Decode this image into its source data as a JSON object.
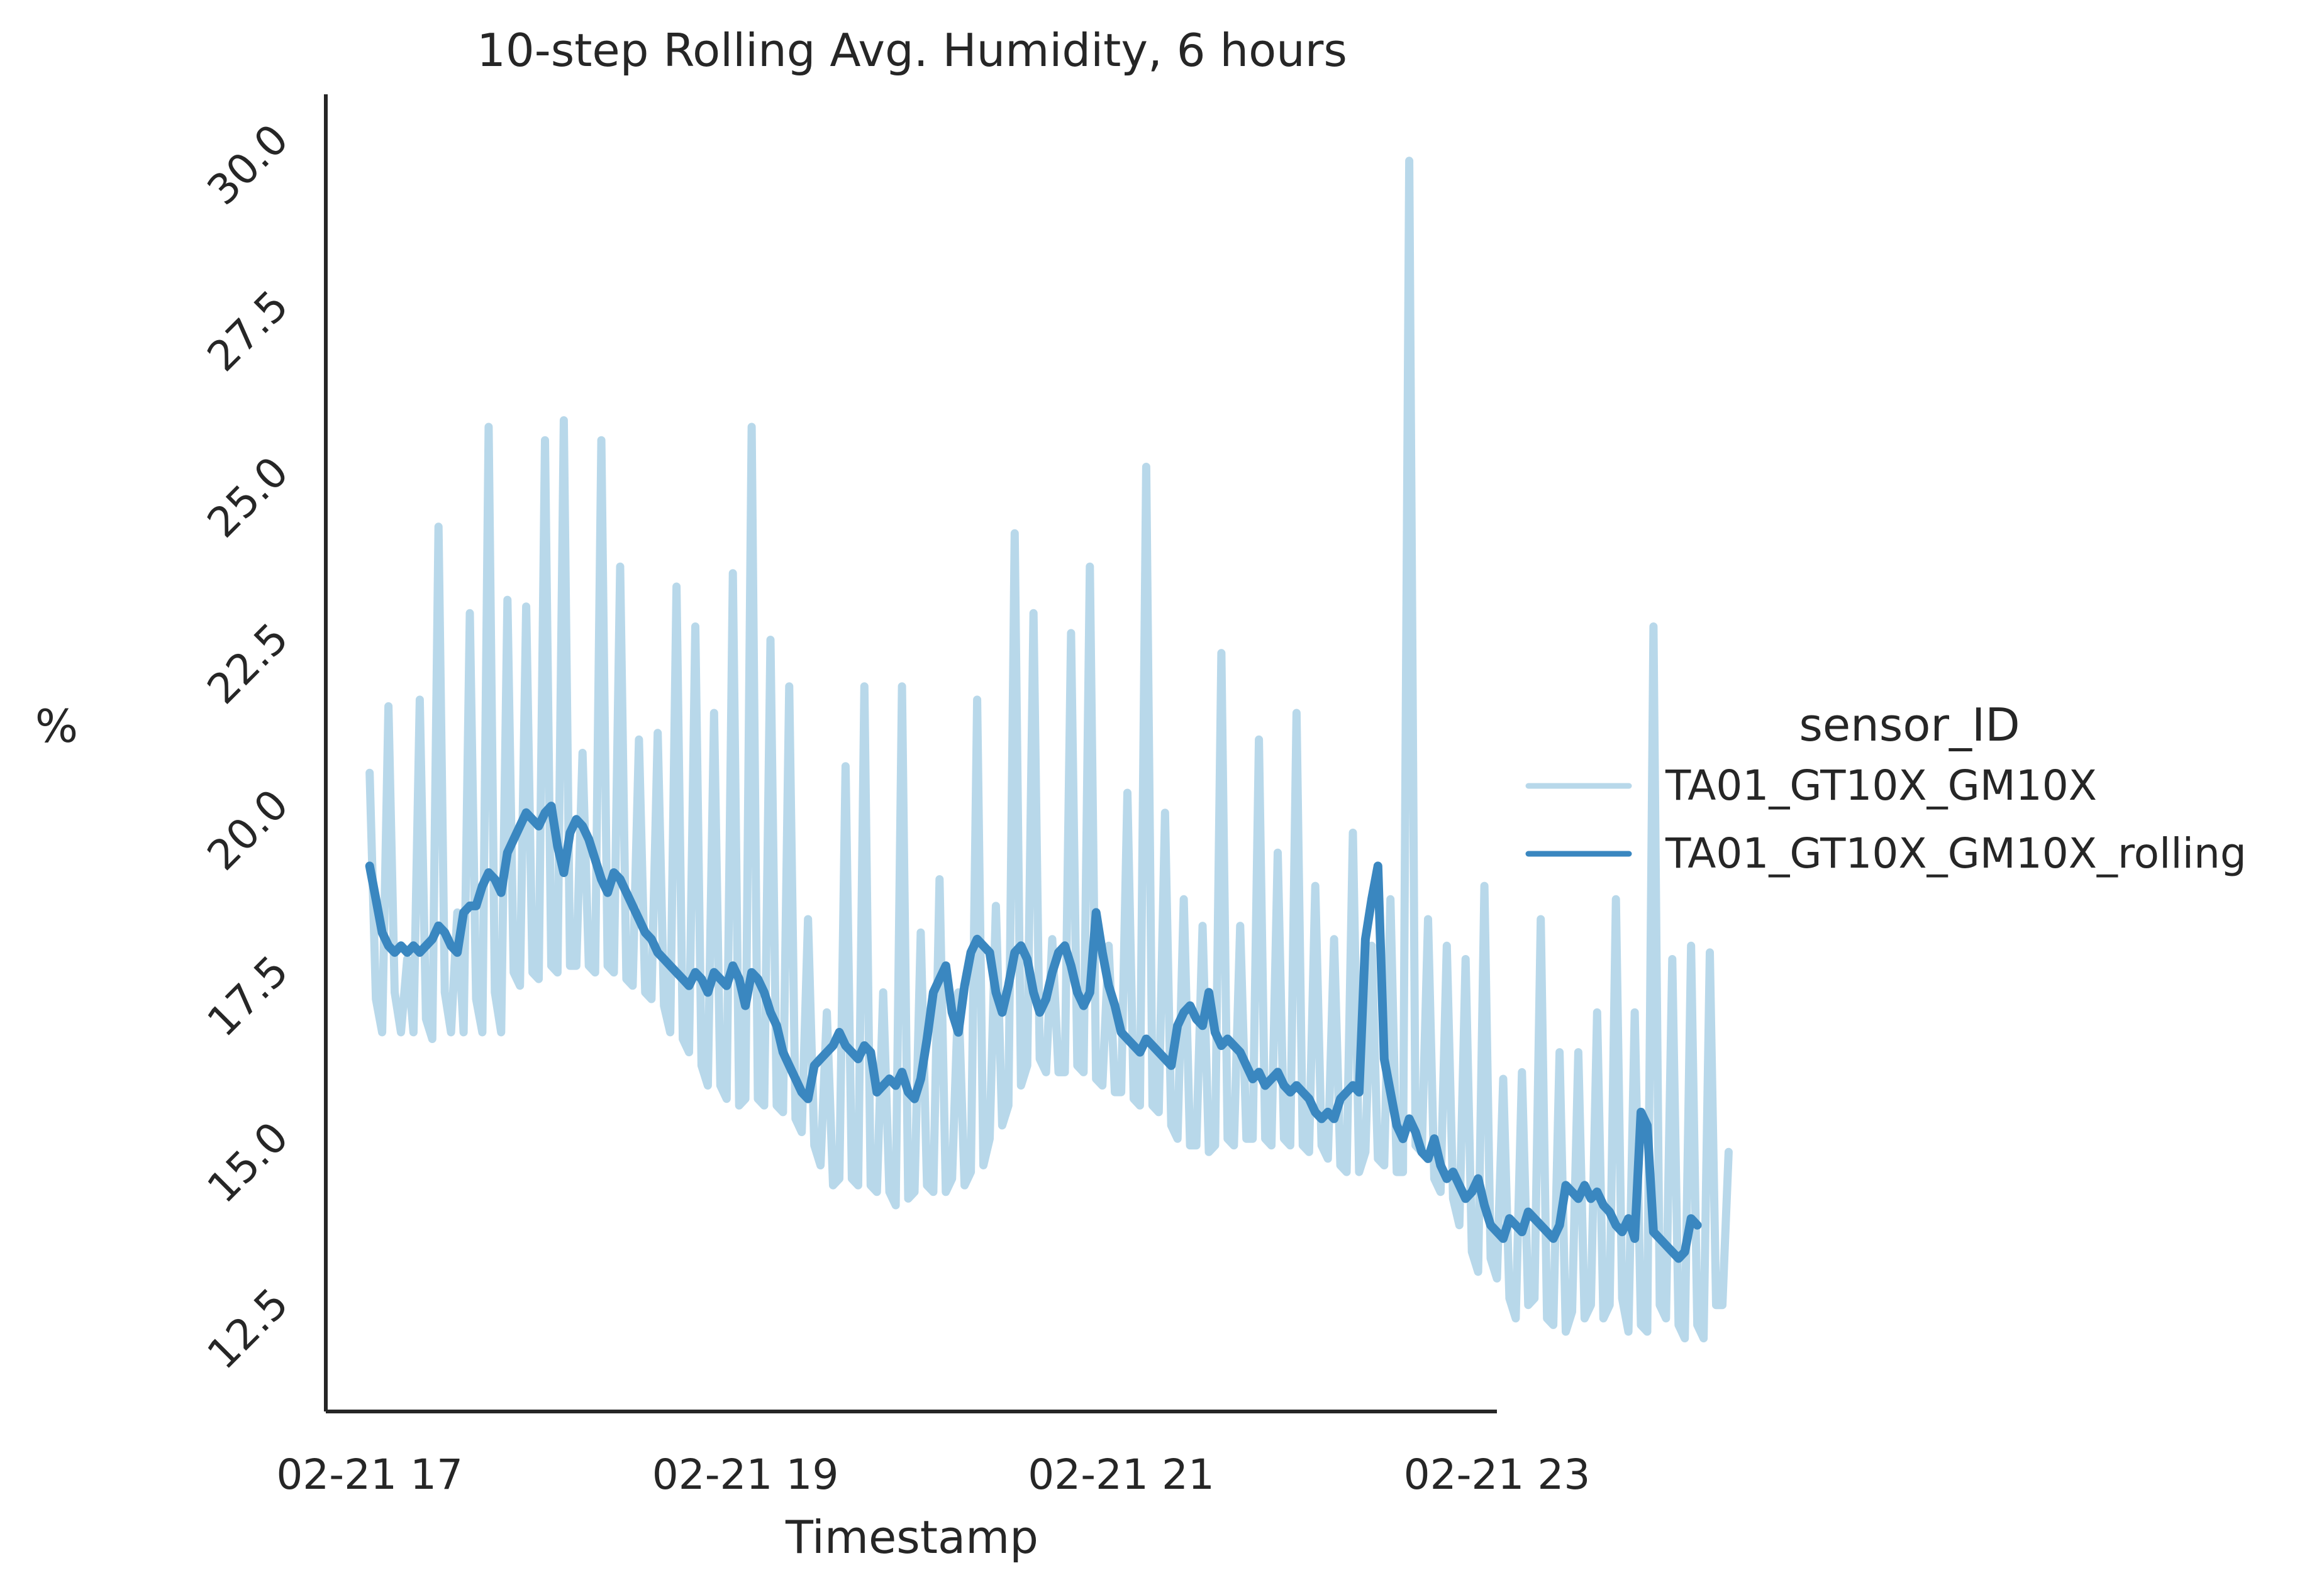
{
  "chart_data": {
    "type": "line",
    "title": "10-step Rolling Avg. Humidity, 6 hours",
    "xlabel": "Timestamp",
    "ylabel": "%",
    "xlim": [
      "2021-02-21T16:46",
      "2021-02-21T23:00"
    ],
    "ylim": [
      11.2,
      31.0
    ],
    "x_ticks": [
      {
        "value": "2021-02-21T17:00",
        "label": "02-21 17"
      },
      {
        "value": "2021-02-21T19:00",
        "label": "02-21 19"
      },
      {
        "value": "2021-02-21T21:00",
        "label": "02-21 21"
      },
      {
        "value": "2021-02-21T23:00",
        "label": "02-21 23"
      }
    ],
    "y_ticks": [
      {
        "value": 12.5,
        "label": "12.5"
      },
      {
        "value": 15.0,
        "label": "15.0"
      },
      {
        "value": 17.5,
        "label": "17.5"
      },
      {
        "value": 20.0,
        "label": "20.0"
      },
      {
        "value": 22.5,
        "label": "22.5"
      },
      {
        "value": 25.0,
        "label": "25.0"
      },
      {
        "value": 27.5,
        "label": "27.5"
      },
      {
        "value": 30.0,
        "label": "30.0"
      }
    ],
    "grid": false,
    "legend": {
      "title": "sensor_ID",
      "placement": "right"
    },
    "series": [
      {
        "name": "TA01_GT10X_GM10X",
        "color": "#b8d8ea",
        "start": "2021-02-21T17:00",
        "step_minutes": 2,
        "values": [
          20.8,
          17.4,
          16.9,
          21.8,
          17.5,
          16.9,
          18.0,
          16.9,
          21.9,
          17.1,
          16.8,
          24.5,
          17.5,
          16.9,
          18.7,
          16.9,
          23.2,
          17.4,
          16.9,
          26.0,
          17.5,
          16.9,
          23.4,
          17.8,
          17.6,
          23.3,
          17.8,
          17.7,
          25.8,
          17.9,
          17.8,
          26.1,
          17.9,
          17.9,
          21.1,
          17.9,
          17.8,
          25.8,
          17.9,
          17.8,
          23.9,
          17.7,
          17.6,
          21.3,
          17.5,
          17.4,
          21.4,
          17.3,
          16.9,
          23.6,
          16.8,
          16.6,
          23.0,
          16.4,
          16.1,
          21.7,
          16.1,
          15.9,
          23.8,
          15.8,
          15.9,
          26.0,
          15.9,
          15.8,
          22.8,
          15.8,
          15.7,
          22.1,
          15.6,
          15.4,
          18.6,
          15.2,
          14.9,
          17.2,
          14.6,
          14.7,
          20.9,
          14.7,
          14.6,
          22.1,
          14.6,
          14.5,
          17.5,
          14.5,
          14.3,
          22.1,
          14.4,
          14.5,
          18.4,
          14.6,
          14.5,
          19.2,
          14.5,
          14.7,
          17.5,
          14.6,
          14.8,
          21.9,
          14.9,
          15.3,
          18.8,
          15.5,
          15.8,
          24.4,
          16.1,
          16.4,
          23.2,
          16.5,
          16.3,
          18.3,
          16.3,
          16.3,
          22.9,
          16.4,
          16.3,
          23.9,
          16.2,
          16.1,
          18.2,
          16.0,
          16.0,
          20.5,
          15.9,
          15.8,
          25.4,
          15.8,
          15.7,
          20.2,
          15.5,
          15.3,
          18.9,
          15.2,
          15.2,
          18.5,
          15.1,
          15.2,
          22.6,
          15.3,
          15.2,
          18.5,
          15.3,
          15.3,
          21.3,
          15.3,
          15.2,
          19.6,
          15.3,
          15.2,
          21.7,
          15.2,
          15.1,
          19.1,
          15.2,
          15.0,
          18.3,
          14.9,
          14.8,
          19.9,
          14.8,
          15.1,
          18.2,
          15.0,
          14.9,
          18.9,
          14.8,
          14.8,
          30.0,
          15.2,
          15.1,
          18.6,
          14.7,
          14.5,
          18.2,
          14.4,
          14.0,
          18.0,
          13.6,
          13.3,
          19.1,
          13.5,
          13.2,
          16.2,
          12.9,
          12.6,
          16.3,
          12.8,
          12.9,
          18.6,
          12.6,
          12.5,
          16.6,
          12.4,
          12.7,
          16.6,
          12.6,
          12.8,
          17.2,
          12.6,
          12.8,
          18.9,
          12.9,
          12.4,
          17.2,
          12.5,
          12.4,
          23.0,
          12.8,
          12.6,
          18.0,
          12.5,
          12.3,
          18.2,
          12.5,
          12.3,
          18.1,
          12.8,
          12.8,
          15.1
        ]
      },
      {
        "name": "TA01_GT10X_GM10X_rolling",
        "color": "#3a87c0",
        "start": "2021-02-21T17:00",
        "step_minutes": 2,
        "values": [
          19.4,
          18.9,
          18.4,
          18.2,
          18.1,
          18.2,
          18.1,
          18.2,
          18.1,
          18.2,
          18.3,
          18.5,
          18.4,
          18.2,
          18.1,
          18.7,
          18.8,
          18.8,
          19.1,
          19.3,
          19.2,
          19.0,
          19.6,
          19.8,
          20.0,
          20.2,
          20.1,
          20.0,
          20.2,
          20.3,
          19.7,
          19.3,
          19.9,
          20.1,
          20.0,
          19.8,
          19.5,
          19.2,
          19.0,
          19.3,
          19.2,
          19.0,
          18.8,
          18.6,
          18.4,
          18.3,
          18.1,
          18.0,
          17.9,
          17.8,
          17.7,
          17.6,
          17.8,
          17.7,
          17.5,
          17.8,
          17.7,
          17.6,
          17.9,
          17.7,
          17.3,
          17.8,
          17.7,
          17.5,
          17.2,
          17.0,
          16.6,
          16.4,
          16.2,
          16.0,
          15.9,
          16.4,
          16.5,
          16.6,
          16.7,
          16.9,
          16.7,
          16.6,
          16.5,
          16.7,
          16.6,
          16.0,
          16.1,
          16.2,
          16.1,
          16.3,
          16.0,
          15.9,
          16.2,
          16.8,
          17.5,
          17.7,
          17.9,
          17.2,
          16.9,
          17.6,
          18.1,
          18.3,
          18.2,
          18.1,
          17.5,
          17.2,
          17.6,
          18.1,
          18.2,
          18.0,
          17.5,
          17.2,
          17.4,
          17.8,
          18.1,
          18.2,
          17.9,
          17.5,
          17.3,
          17.5,
          18.7,
          18.1,
          17.6,
          17.3,
          16.9,
          16.8,
          16.7,
          16.6,
          16.8,
          16.7,
          16.6,
          16.5,
          16.4,
          17.0,
          17.2,
          17.3,
          17.1,
          17.0,
          17.5,
          16.9,
          16.7,
          16.8,
          16.7,
          16.6,
          16.4,
          16.2,
          16.3,
          16.1,
          16.2,
          16.3,
          16.1,
          16.0,
          16.1,
          16.0,
          15.9,
          15.7,
          15.6,
          15.7,
          15.6,
          15.9,
          16.0,
          16.1,
          16.0,
          18.3,
          18.9,
          19.4,
          16.5,
          16.0,
          15.5,
          15.3,
          15.6,
          15.4,
          15.1,
          15.0,
          15.3,
          14.9,
          14.7,
          14.8,
          14.6,
          14.4,
          14.5,
          14.7,
          14.3,
          14.0,
          13.9,
          13.8,
          14.1,
          14.0,
          13.9,
          14.2,
          14.1,
          14.0,
          13.9,
          13.8,
          14.0,
          14.6,
          14.5,
          14.4,
          14.6,
          14.4,
          14.5,
          14.3,
          14.2,
          14.0,
          13.9,
          14.1,
          13.8,
          15.7,
          15.5,
          13.9,
          13.8,
          13.7,
          13.6,
          13.5,
          13.6,
          14.1,
          14.0
        ]
      }
    ]
  }
}
